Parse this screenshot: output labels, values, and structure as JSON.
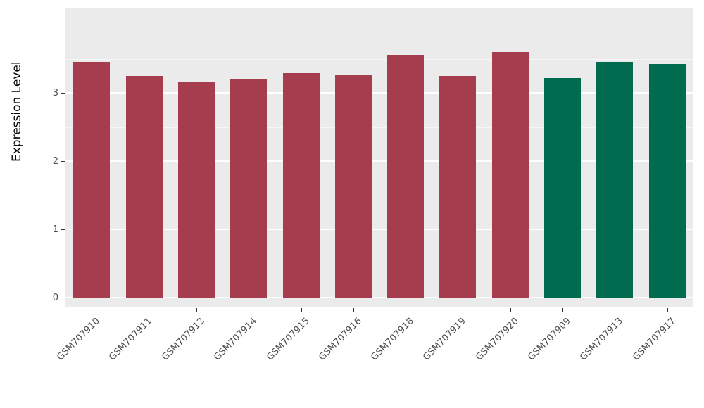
{
  "chart_data": {
    "type": "bar",
    "title": "",
    "xlabel": "",
    "ylabel": "Expression Level",
    "ylim": [
      0,
      4.2
    ],
    "yticks": [
      0,
      1,
      2,
      3
    ],
    "minor_ticks": [
      0.5,
      1.5,
      2.5,
      3.5
    ],
    "grid": true,
    "legend_position": "none",
    "categories": [
      "GSM707910",
      "GSM707911",
      "GSM707912",
      "GSM707914",
      "GSM707915",
      "GSM707916",
      "GSM707918",
      "GSM707919",
      "GSM707920",
      "GSM707909",
      "GSM707913",
      "GSM707917"
    ],
    "values": [
      3.45,
      3.25,
      3.16,
      3.21,
      3.29,
      3.26,
      3.56,
      3.25,
      3.6,
      3.22,
      3.45,
      3.42
    ],
    "bar_colors": [
      "#A63D4E",
      "#A63D4E",
      "#A63D4E",
      "#A63D4E",
      "#A63D4E",
      "#A63D4E",
      "#A63D4E",
      "#A63D4E",
      "#A63D4E",
      "#006B4E",
      "#006B4E",
      "#006B4E"
    ]
  },
  "colors": {
    "panel_background": "#EBEBEB",
    "gridline": "#FFFFFF",
    "red_group": "#A63D4E",
    "green_group": "#006B4E",
    "axis_text": "#4D4D4D",
    "axis_title": "#000000"
  }
}
